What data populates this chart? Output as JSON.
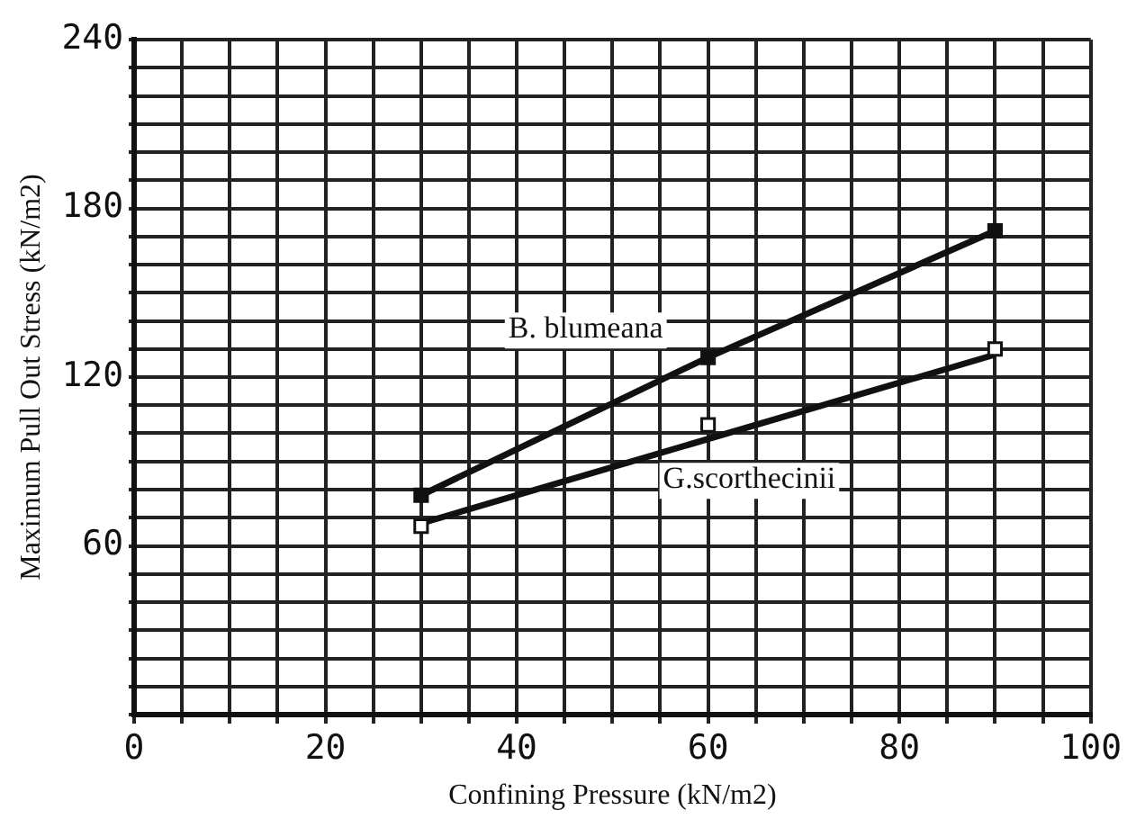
{
  "chart_data": {
    "type": "line",
    "xlabel": "Confining Pressure (kN/m2)",
    "ylabel": "Maximum Pull Out Stress (kN/m2)",
    "xlim": [
      0,
      100
    ],
    "ylim": [
      0,
      240
    ],
    "xticks": [
      0,
      {
        "value": 5,
        "label": null
      },
      {
        "value": 10,
        "label": null
      },
      {
        "value": 15,
        "label": null
      },
      20,
      {
        "value": 25,
        "label": null
      },
      {
        "value": 30,
        "label": null
      },
      {
        "value": 35,
        "label": null
      },
      40,
      {
        "value": 45,
        "label": null
      },
      {
        "value": 50,
        "label": null
      },
      {
        "value": 55,
        "label": null
      },
      60,
      {
        "value": 65,
        "label": null
      },
      {
        "value": 70,
        "label": null
      },
      {
        "value": 75,
        "label": null
      },
      80,
      {
        "value": 85,
        "label": null
      },
      {
        "value": 90,
        "label": null
      },
      {
        "value": 95,
        "label": null
      },
      100
    ],
    "yticks": [
      {
        "value": 0,
        "label": null
      },
      {
        "value": 10,
        "label": null
      },
      {
        "value": 20,
        "label": null
      },
      {
        "value": 30,
        "label": null
      },
      {
        "value": 40,
        "label": null
      },
      {
        "value": 50,
        "label": null
      },
      60,
      {
        "value": 70,
        "label": null
      },
      {
        "value": 80,
        "label": null
      },
      {
        "value": 90,
        "label": null
      },
      {
        "value": 100,
        "label": null
      },
      {
        "value": 110,
        "label": null
      },
      120,
      {
        "value": 130,
        "label": null
      },
      {
        "value": 140,
        "label": null
      },
      {
        "value": 150,
        "label": null
      },
      {
        "value": 160,
        "label": null
      },
      {
        "value": 170,
        "label": null
      },
      180,
      {
        "value": 190,
        "label": null
      },
      {
        "value": 200,
        "label": null
      },
      {
        "value": 210,
        "label": null
      },
      {
        "value": 220,
        "label": null
      },
      {
        "value": 230,
        "label": null
      },
      240
    ],
    "grid": true,
    "legend": false,
    "line_style": "solid",
    "series": [
      {
        "name": "B. blumeana",
        "marker": "square",
        "color": "#111111",
        "x": [
          30,
          60,
          90
        ],
        "values": [
          78,
          127,
          172
        ]
      },
      {
        "name": "G.scorthecinii",
        "type": "scatter",
        "marker": "square",
        "color": "#111111",
        "x": [
          30,
          60,
          90
        ],
        "values": [
          67,
          103,
          130
        ]
      },
      {
        "marker": "none",
        "color": "#111111",
        "x": [
          30,
          90
        ],
        "values": [
          68,
          128
        ]
      }
    ]
  }
}
